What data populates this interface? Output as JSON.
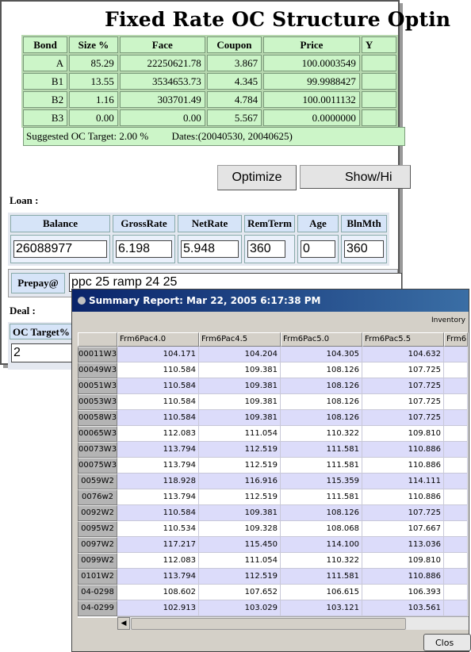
{
  "form": {
    "title": "Fixed Rate OC Structure Optin",
    "bond_table": {
      "headers": [
        "Bond",
        "Size %",
        "Face",
        "Coupon",
        "Price",
        "Y"
      ],
      "rows": [
        [
          "A",
          "85.29",
          "22250621.78",
          "3.867",
          "100.0003549",
          ""
        ],
        [
          "B1",
          "13.55",
          "3534653.73",
          "4.345",
          "99.9988427",
          ""
        ],
        [
          "B2",
          "1.16",
          "303701.49",
          "4.784",
          "100.0011132",
          ""
        ],
        [
          "B3",
          "0.00",
          "0.00",
          "5.567",
          "0.0000000",
          ""
        ]
      ]
    },
    "suggested_target": "Suggested OC Target: 2.00 %",
    "dates": "Dates:(20040530, 20040625)",
    "optimize_label": "Optimize",
    "showhide_label": "Show/Hi",
    "loan_label": "Loan :",
    "loan_headers": [
      "Balance",
      "GrossRate",
      "NetRate",
      "RemTerm",
      "Age",
      "BlnMth"
    ],
    "loan_values": [
      "26088977",
      "6.198",
      "5.948",
      "360",
      "0",
      "360"
    ],
    "prepay_label": "Prepay@",
    "prepay_value": "ppc 25 ramp 24 25",
    "deal_label": "Deal :",
    "oc_label": "OC Target%",
    "oc_value": "2"
  },
  "report": {
    "title": "Summary Report: Mar 22, 2005 6:17:38 PM",
    "corner_label": "Inventory",
    "columns": [
      "Frm6Pac4.0",
      "Frm6Pac4.5",
      "Frm6Pac5.0",
      "Frm6Pac5.5",
      "Frm6"
    ],
    "rows": [
      {
        "id": "00011W3",
        "values": [
          "104.171",
          "104.204",
          "104.305",
          "104.632"
        ]
      },
      {
        "id": "00049W3",
        "values": [
          "110.584",
          "109.381",
          "108.126",
          "107.725"
        ]
      },
      {
        "id": "00051W3",
        "values": [
          "110.584",
          "109.381",
          "108.126",
          "107.725"
        ]
      },
      {
        "id": "00053W3",
        "values": [
          "110.584",
          "109.381",
          "108.126",
          "107.725"
        ]
      },
      {
        "id": "00058W3",
        "values": [
          "110.584",
          "109.381",
          "108.126",
          "107.725"
        ]
      },
      {
        "id": "00065W3",
        "values": [
          "112.083",
          "111.054",
          "110.322",
          "109.810"
        ]
      },
      {
        "id": "00073W3",
        "values": [
          "113.794",
          "112.519",
          "111.581",
          "110.886"
        ]
      },
      {
        "id": "00075W3",
        "values": [
          "113.794",
          "112.519",
          "111.581",
          "110.886"
        ]
      },
      {
        "id": "0059W2",
        "values": [
          "118.928",
          "116.916",
          "115.359",
          "114.111"
        ]
      },
      {
        "id": "0076w2",
        "values": [
          "113.794",
          "112.519",
          "111.581",
          "110.886"
        ]
      },
      {
        "id": "0092W2",
        "values": [
          "110.584",
          "109.381",
          "108.126",
          "107.725"
        ]
      },
      {
        "id": "0095W2",
        "values": [
          "110.534",
          "109.328",
          "108.068",
          "107.667"
        ]
      },
      {
        "id": "0097W2",
        "values": [
          "117.217",
          "115.450",
          "114.100",
          "113.036"
        ]
      },
      {
        "id": "0099W2",
        "values": [
          "112.083",
          "111.054",
          "110.322",
          "109.810"
        ]
      },
      {
        "id": "0101W2",
        "values": [
          "113.794",
          "112.519",
          "111.581",
          "110.886"
        ]
      },
      {
        "id": "04-0298",
        "values": [
          "108.602",
          "107.652",
          "106.615",
          "106.393"
        ]
      },
      {
        "id": "04-0299",
        "values": [
          "102.913",
          "103.029",
          "103.121",
          "103.561"
        ]
      }
    ],
    "close_label": "Clos"
  }
}
